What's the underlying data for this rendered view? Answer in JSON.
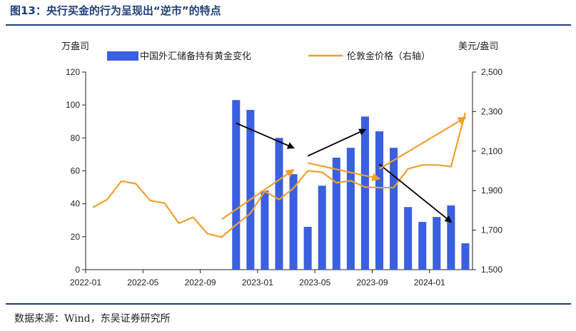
{
  "figure": {
    "title": "图13：央行买金的行为呈现出“逆市”的特点",
    "source": "数据来源：Wind，东吴证券研究所"
  },
  "chart_data": {
    "type": "bar",
    "title": "图13：央行买金的行为呈现出“逆市”的特点",
    "y_left_unit": "万盎司",
    "y_right_unit": "美元/盎司",
    "y_left_ticks": [
      "0",
      "20",
      "40",
      "60",
      "80",
      "100",
      "120"
    ],
    "y_right_ticks": [
      "1,500",
      "1,700",
      "1,900",
      "2,100",
      "2,300",
      "2,500"
    ],
    "x_ticks": [
      "2022-01",
      "2022-05",
      "2022-09",
      "2023-01",
      "2023-05",
      "2023-09",
      "2024-01"
    ],
    "ylim_left": [
      0,
      120
    ],
    "ylim_right": [
      1500,
      2500
    ],
    "grid": false,
    "legend_position": "top",
    "x": [
      "2022-01",
      "2022-02",
      "2022-03",
      "2022-04",
      "2022-05",
      "2022-06",
      "2022-07",
      "2022-08",
      "2022-09",
      "2022-10",
      "2022-11",
      "2022-12",
      "2023-01",
      "2023-02",
      "2023-03",
      "2023-04",
      "2023-05",
      "2023-06",
      "2023-07",
      "2023-08",
      "2023-09",
      "2023-10",
      "2023-11",
      "2023-12",
      "2024-01",
      "2024-02",
      "2024-03"
    ],
    "series": [
      {
        "name": "中国外汇储备持有黄金变化",
        "kind": "bar",
        "axis": "left",
        "color": "#3a5fe0",
        "values": [
          null,
          null,
          null,
          null,
          null,
          null,
          null,
          null,
          null,
          null,
          103,
          97,
          48,
          80,
          58,
          26,
          51,
          68,
          74,
          93,
          84,
          74,
          38,
          29,
          32,
          39,
          16
        ]
      },
      {
        "name": "伦敦金价格（右轴）",
        "kind": "line",
        "axis": "right",
        "color": "#f0a030",
        "values": [
          1815,
          1855,
          1948,
          1935,
          1850,
          1837,
          1735,
          1765,
          1682,
          1665,
          1727,
          1785,
          1897,
          1855,
          1912,
          2000,
          1993,
          1940,
          1950,
          1918,
          1915,
          1915,
          2010,
          2030,
          2030,
          2022,
          2295
        ]
      }
    ],
    "annotations": [
      {
        "kind": "trend-arrow",
        "color": "#000000",
        "from": [
          "2022-11",
          89
        ],
        "to": [
          "2023-03",
          74
        ]
      },
      {
        "kind": "trend-arrow",
        "color": "#000000",
        "from": [
          "2023-04",
          69
        ],
        "to": [
          "2023-08",
          85
        ]
      },
      {
        "kind": "trend-arrow",
        "color": "#000000",
        "from": [
          "2023-09",
          64
        ],
        "to": [
          "2024-02",
          29
        ]
      },
      {
        "kind": "trend-arrow",
        "color": "#f0a030",
        "axis": "right",
        "from": [
          "2022-10",
          1755
        ],
        "to": [
          "2023-03",
          2005
        ]
      },
      {
        "kind": "trend-arrow",
        "color": "#f0a030",
        "axis": "right",
        "from": [
          "2023-04",
          2040
        ],
        "to": [
          "2023-09",
          1960
        ]
      },
      {
        "kind": "trend-arrow",
        "color": "#f0a030",
        "axis": "right",
        "from": [
          "2023-09",
          2010
        ],
        "to": [
          "2024-03",
          2270
        ]
      }
    ]
  }
}
